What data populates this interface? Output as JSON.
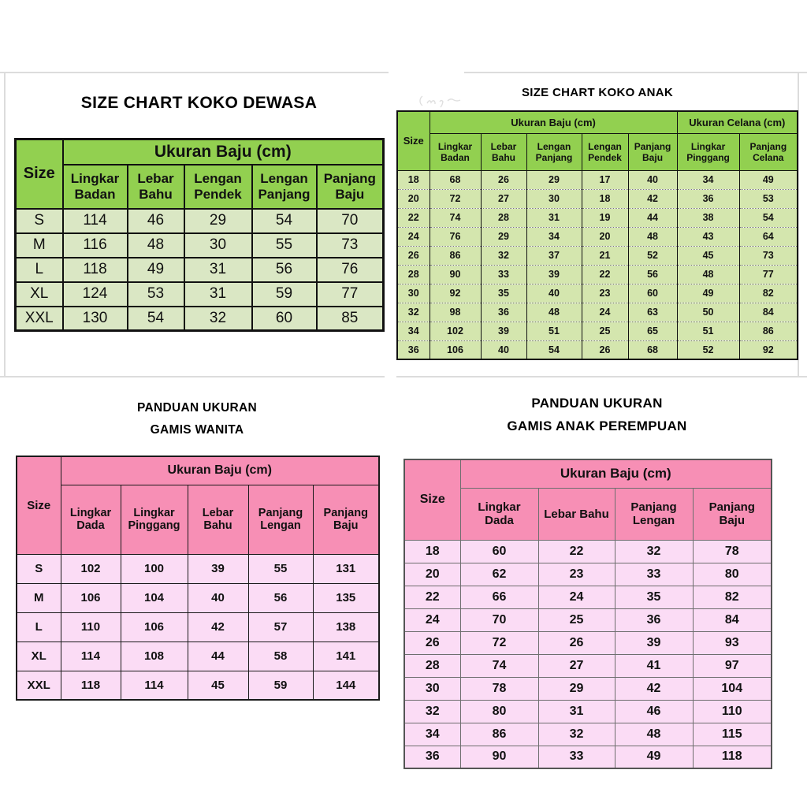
{
  "palette": {
    "green_header": "#92d050",
    "green_row_dewasa": "#dae7c4",
    "green_row_anak": "#d4e6ae",
    "pink_header": "#f78fb5",
    "pink_row": "#fbdcf5",
    "table_border_dark": "#111111",
    "table_border_gray": "#6e6e6e",
    "panel_divider": "#dcdcdc"
  },
  "chart_data": [
    {
      "type": "table",
      "id": "koko-dewasa",
      "title_lines": [
        "SIZE CHART KOKO DEWASA"
      ],
      "corner_label": "Size",
      "col_groups": [
        {
          "label": "Ukuran Baju (cm)",
          "span": 5
        }
      ],
      "columns": [
        "Lingkar Badan",
        "Lebar Bahu",
        "Lengan Pendek",
        "Lengan Panjang",
        "Panjang Baju"
      ],
      "rows": [
        [
          "S",
          114,
          46,
          29,
          54,
          70
        ],
        [
          "M",
          116,
          48,
          30,
          55,
          73
        ],
        [
          "L",
          118,
          49,
          31,
          56,
          76
        ],
        [
          "XL",
          124,
          53,
          31,
          59,
          77
        ],
        [
          "XXL",
          130,
          54,
          32,
          60,
          85
        ]
      ]
    },
    {
      "type": "table",
      "id": "koko-anak",
      "title_lines": [
        "SIZE CHART KOKO ANAK"
      ],
      "corner_label": "Size",
      "col_groups": [
        {
          "label": "Ukuran Baju (cm)",
          "span": 5
        },
        {
          "label": "Ukuran Celana (cm)",
          "span": 2
        }
      ],
      "columns": [
        "Lingkar Badan",
        "Lebar Bahu",
        "Lengan Panjang",
        "Lengan Pendek",
        "Panjang Baju",
        "Lingkar Pinggang",
        "Panjang Celana"
      ],
      "rows": [
        [
          "18",
          68,
          26,
          29,
          17,
          40,
          34,
          49
        ],
        [
          "20",
          72,
          27,
          30,
          18,
          42,
          36,
          53
        ],
        [
          "22",
          74,
          28,
          31,
          19,
          44,
          38,
          54
        ],
        [
          "24",
          76,
          29,
          34,
          20,
          48,
          43,
          64
        ],
        [
          "26",
          86,
          32,
          37,
          21,
          52,
          45,
          73
        ],
        [
          "28",
          90,
          33,
          39,
          22,
          56,
          48,
          77
        ],
        [
          "30",
          92,
          35,
          40,
          23,
          60,
          49,
          82
        ],
        [
          "32",
          98,
          36,
          48,
          24,
          63,
          50,
          84
        ],
        [
          "34",
          102,
          39,
          51,
          25,
          65,
          51,
          86
        ],
        [
          "36",
          106,
          40,
          54,
          26,
          68,
          52,
          92
        ]
      ]
    },
    {
      "type": "table",
      "id": "gamis-wanita",
      "title_lines": [
        "PANDUAN UKURAN",
        "GAMIS WANITA"
      ],
      "corner_label": "Size",
      "col_groups": [
        {
          "label": "Ukuran Baju (cm)",
          "span": 5
        }
      ],
      "columns": [
        "Lingkar Dada",
        "Lingkar Pinggang",
        "Lebar Bahu",
        "Panjang Lengan",
        "Panjang Baju"
      ],
      "rows": [
        [
          "S",
          102,
          100,
          39,
          55,
          131
        ],
        [
          "M",
          106,
          104,
          40,
          56,
          135
        ],
        [
          "L",
          110,
          106,
          42,
          57,
          138
        ],
        [
          "XL",
          114,
          108,
          44,
          58,
          141
        ],
        [
          "XXL",
          118,
          114,
          45,
          59,
          144
        ]
      ]
    },
    {
      "type": "table",
      "id": "gamis-anak-perempuan",
      "title_lines": [
        "PANDUAN UKURAN",
        "GAMIS ANAK PEREMPUAN"
      ],
      "corner_label": "Size",
      "col_groups": [
        {
          "label": "Ukuran Baju (cm)",
          "span": 4
        }
      ],
      "columns": [
        "Lingkar Dada",
        "Lebar Bahu",
        "Panjang Lengan",
        "Panjang Baju"
      ],
      "rows": [
        [
          "18",
          60,
          22,
          32,
          78
        ],
        [
          "20",
          62,
          23,
          33,
          80
        ],
        [
          "22",
          66,
          24,
          35,
          82
        ],
        [
          "24",
          70,
          25,
          36,
          84
        ],
        [
          "26",
          72,
          26,
          39,
          93
        ],
        [
          "28",
          74,
          27,
          41,
          97
        ],
        [
          "30",
          78,
          29,
          42,
          104
        ],
        [
          "32",
          80,
          31,
          46,
          110
        ],
        [
          "34",
          86,
          32,
          48,
          115
        ],
        [
          "36",
          90,
          33,
          49,
          118
        ]
      ]
    }
  ]
}
